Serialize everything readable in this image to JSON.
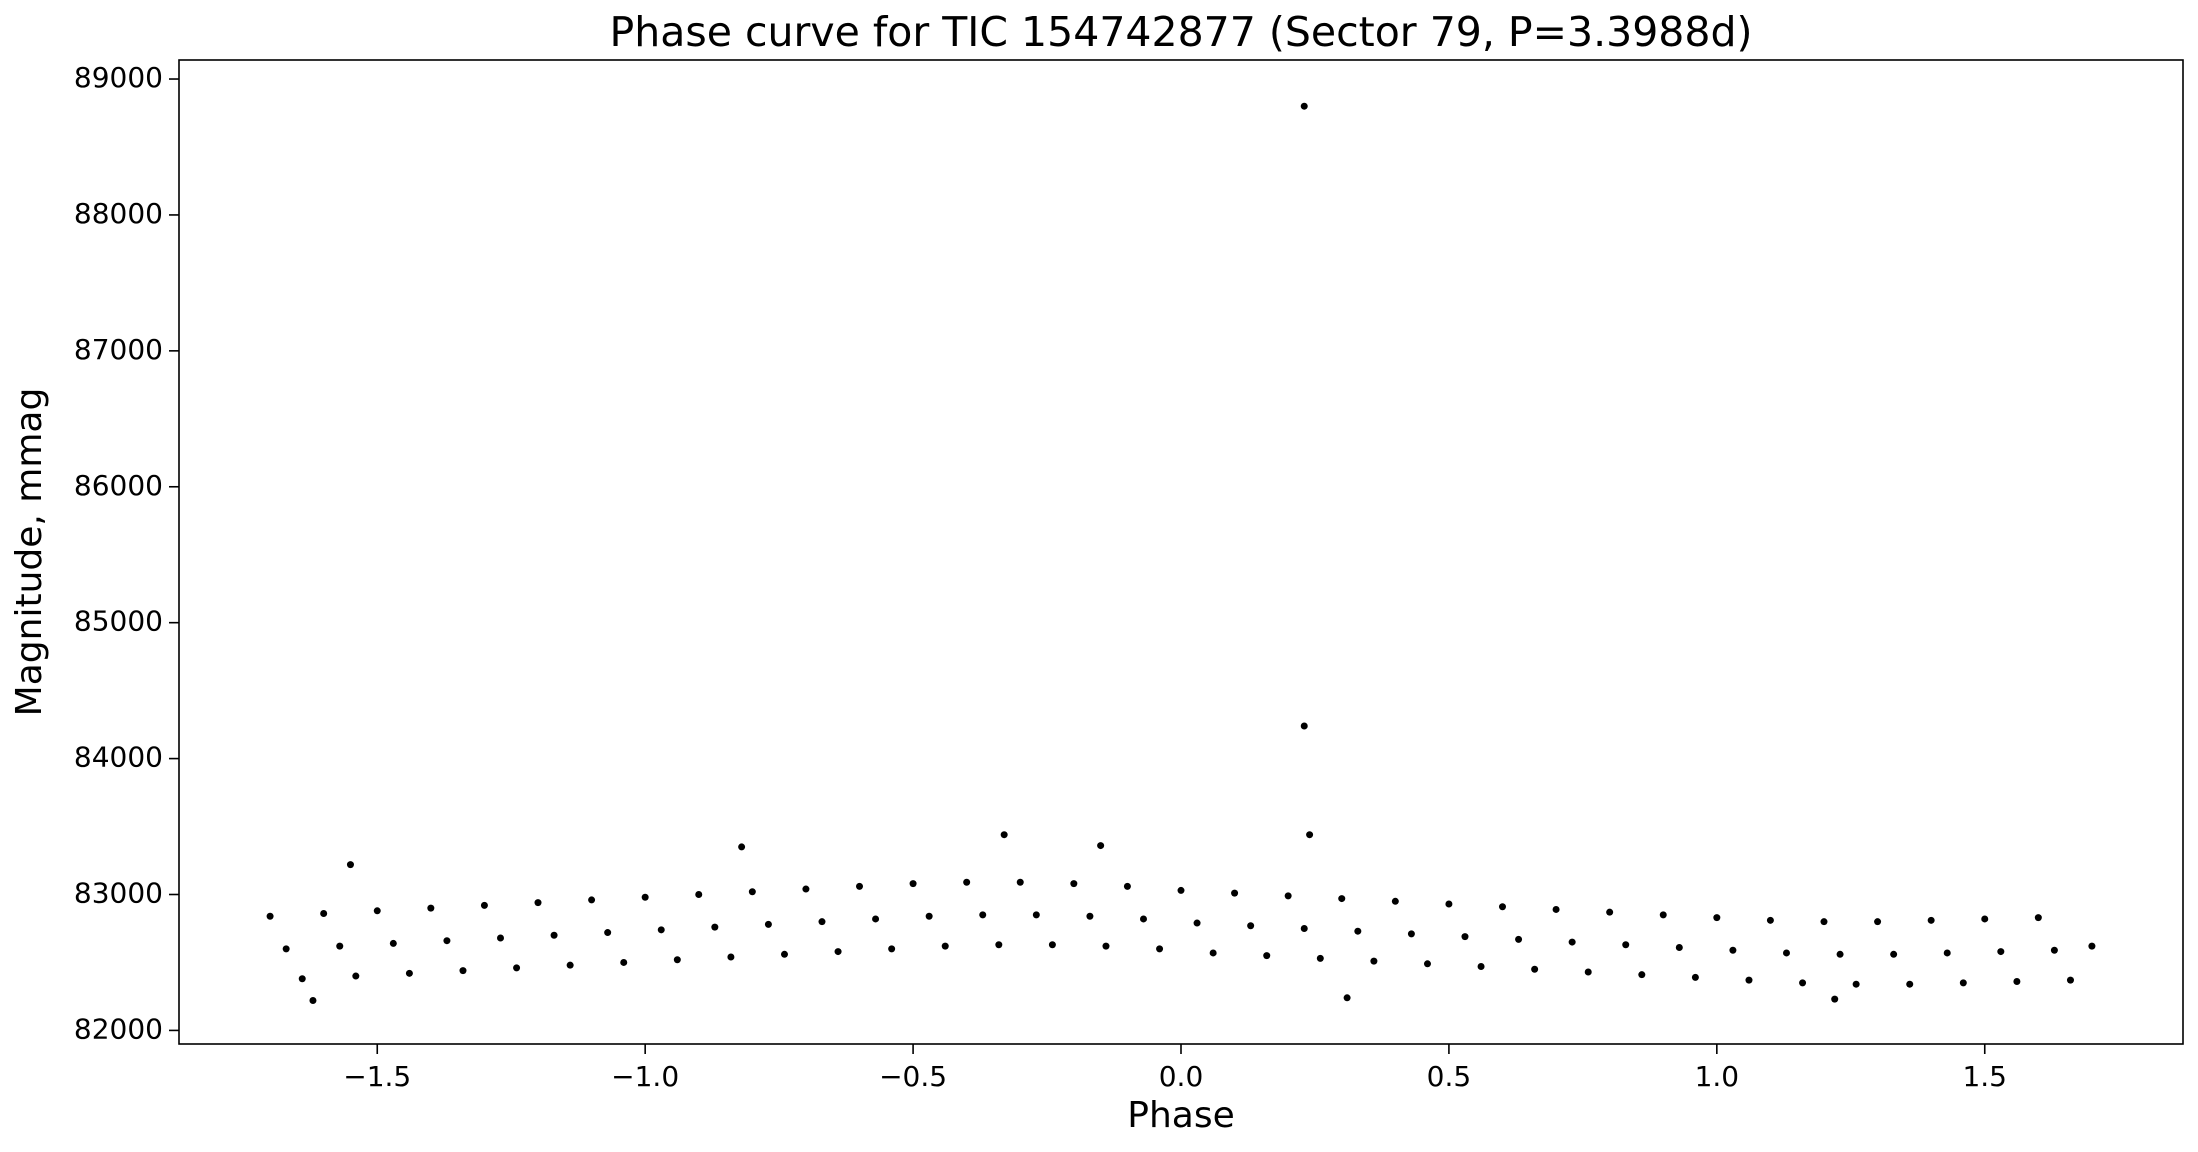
{
  "chart_data": {
    "type": "scatter",
    "title": "Phase curve for TIC 154742877 (Sector 79, P=3.3988d)",
    "x_label": "Phase",
    "y_label": "Magnitude, mmag",
    "color": "#000000",
    "x": [
      -1.7,
      -1.67,
      -1.64,
      -1.6,
      -1.57,
      -1.54,
      -1.5,
      -1.47,
      -1.44,
      -1.4,
      -1.37,
      -1.34,
      -1.3,
      -1.27,
      -1.24,
      -1.2,
      -1.17,
      -1.14,
      -1.1,
      -1.07,
      -1.04,
      -1.0,
      -0.97,
      -0.94,
      -0.9,
      -0.87,
      -0.84,
      -0.8,
      -0.77,
      -0.74,
      -0.7,
      -0.67,
      -0.64,
      -0.6,
      -0.57,
      -0.54,
      -0.5,
      -0.47,
      -0.44,
      -0.4,
      -0.37,
      -0.34,
      -0.3,
      -0.27,
      -0.24,
      -0.2,
      -0.17,
      -0.14,
      -0.1,
      -0.07,
      -0.04,
      0,
      0.03,
      0.06,
      0.1,
      0.13,
      0.16,
      0.2,
      0.23,
      0.26,
      0.3,
      0.33,
      0.36,
      0.4,
      0.43,
      0.46,
      0.5,
      0.53,
      0.56,
      0.6,
      0.63,
      0.66,
      0.7,
      0.73,
      0.76,
      0.8,
      0.83,
      0.86,
      0.9,
      0.93,
      0.96,
      1.0,
      1.03,
      1.06,
      1.1,
      1.13,
      1.16,
      1.2,
      1.23,
      1.26,
      1.3,
      1.33,
      1.36,
      1.4,
      1.43,
      1.46,
      1.5,
      1.53,
      1.56,
      1.6,
      1.63,
      1.66,
      1.7,
      0.23,
      0.23,
      0.24,
      0.31,
      -0.33,
      -1.55,
      -0.82,
      -0.15,
      1.22,
      -1.62
    ],
    "values": [
      82840,
      82600,
      82380,
      82860,
      82620,
      82400,
      82880,
      82640,
      82420,
      82900,
      82660,
      82440,
      82920,
      82680,
      82460,
      82940,
      82700,
      82480,
      82960,
      82720,
      82500,
      82980,
      82740,
      82520,
      83000,
      82760,
      82540,
      83020,
      82780,
      82560,
      83040,
      82800,
      82580,
      83060,
      82820,
      82600,
      83080,
      82840,
      82620,
      83090,
      82850,
      82630,
      83090,
      82850,
      82630,
      83080,
      82840,
      82620,
      83060,
      82820,
      82600,
      83030,
      82790,
      82570,
      83010,
      82770,
      82550,
      82990,
      82750,
      82530,
      82970,
      82730,
      82510,
      82950,
      82710,
      82490,
      82930,
      82690,
      82470,
      82910,
      82670,
      82450,
      82890,
      82650,
      82430,
      82870,
      82630,
      82410,
      82850,
      82610,
      82390,
      82830,
      82590,
      82370,
      82810,
      82570,
      82350,
      82800,
      82560,
      82340,
      82800,
      82560,
      82340,
      82810,
      82570,
      82350,
      82820,
      82580,
      82360,
      82830,
      82590,
      82370,
      82620,
      88800,
      84240,
      83440,
      82240,
      83440,
      83220,
      83350,
      83360,
      82230,
      82220
    ],
    "xlim": [
      -1.87,
      1.87
    ],
    "ylim": [
      81900,
      89140
    ],
    "xticks": [
      {
        "value": -1.5,
        "label": "−1.5"
      },
      {
        "value": -1.0,
        "label": "−1.0"
      },
      {
        "value": -0.5,
        "label": "−0.5"
      },
      {
        "value": 0,
        "label": "0.0"
      },
      0.5,
      {
        "value": 1,
        "label": "1.0"
      },
      1.5
    ],
    "yticks": [
      82000,
      83000,
      84000,
      85000,
      86000,
      87000,
      88000,
      89000
    ]
  }
}
